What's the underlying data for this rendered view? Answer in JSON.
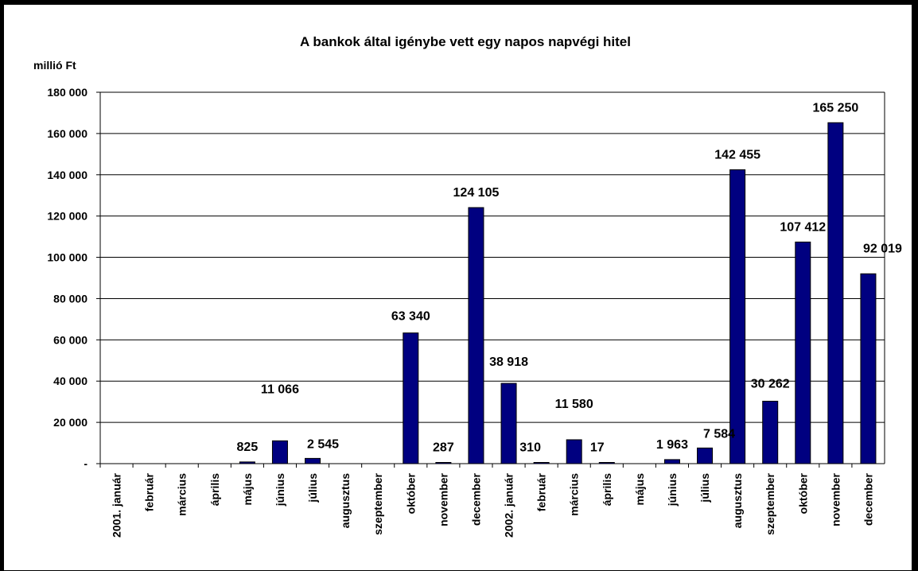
{
  "chart_data": {
    "type": "bar",
    "title": "A bankok által igénybe vett egy napos napvégi hitel",
    "ylabel": "millió Ft",
    "xlabel": "",
    "ylim": [
      0,
      180000
    ],
    "yticks": [
      0,
      20000,
      40000,
      60000,
      80000,
      100000,
      120000,
      140000,
      160000,
      180000
    ],
    "ytick_labels": [
      "-",
      "20 000",
      "40 000",
      "60 000",
      "80 000",
      "100 000",
      "120 000",
      "140 000",
      "160 000",
      "180 000"
    ],
    "grid": "horizontal",
    "legend": "none",
    "bar_color": "#000080",
    "categories": [
      "2001. január",
      "február",
      "március",
      "április",
      "május",
      "június",
      "július",
      "augusztus",
      "szeptember",
      "október",
      "november",
      "december",
      "2002. január",
      "február",
      "március",
      "április",
      "május",
      "június",
      "július",
      "augusztus",
      "szeptember",
      "október",
      "november",
      "december"
    ],
    "values": [
      0,
      0,
      0,
      0,
      825,
      11066,
      2545,
      0,
      0,
      63340,
      287,
      124105,
      38918,
      310,
      11580,
      17,
      0,
      1963,
      7584,
      142455,
      30262,
      107412,
      165250,
      92019
    ],
    "data_labels": [
      "",
      "",
      "",
      "",
      "825",
      "11 066",
      "2 545",
      "",
      "",
      "63 340",
      "287",
      "124 105",
      "38 918",
      "310",
      "11 580",
      "17",
      "",
      "1 963",
      "7 584",
      "142 455",
      "30 262",
      "107 412",
      "165 250",
      "92 019"
    ]
  }
}
